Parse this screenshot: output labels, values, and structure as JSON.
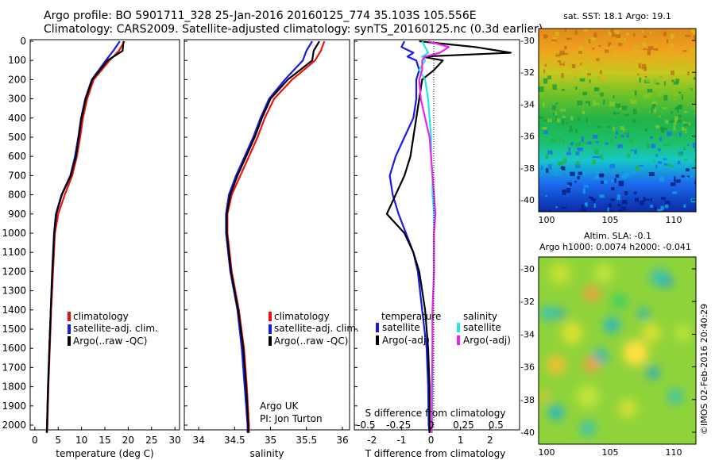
{
  "header": {
    "line1": "Argo profile: BO 5901711_328 25-Jan-2016 20160125_774 35.103S 105.556E",
    "line2": "Climatology: CARS2009. Satellite-adjusted climatology: synTS_20160125.nc (0.3d earlier)"
  },
  "credit": "©IMOS 02-Feb-2016 20:40:29",
  "depth_ticks": [
    0,
    100,
    200,
    300,
    400,
    500,
    600,
    700,
    800,
    900,
    1000,
    1100,
    1200,
    1300,
    1400,
    1500,
    1600,
    1700,
    1800,
    1900,
    2000
  ],
  "colors": {
    "climatology": "#ee1111",
    "satellite": "#1a1ae6",
    "argo": "#000000",
    "salinity_sat": "#22e8e8",
    "salinity_argo": "#ee22ee"
  },
  "temperature_panel": {
    "xlabel": "temperature (deg C)",
    "xticks": [
      "0",
      "5",
      "10",
      "15",
      "20",
      "25",
      "30"
    ],
    "legend": [
      "climatology",
      "satellite-adj. clim.",
      "Argo(..raw -QC)"
    ]
  },
  "salinity_panel": {
    "xlabel": "salinity",
    "xticks": [
      "34",
      "34.5",
      "35",
      "35.5",
      "36"
    ],
    "legend": [
      "climatology",
      "satellite-adj. clim.",
      "Argo(..raw -QC)"
    ],
    "note1": "Argo UK",
    "note2": "PI: Jon Turton"
  },
  "difference_panel": {
    "xlabel": "T difference from climatology",
    "xticks": [
      "-2",
      "-1",
      "0",
      "1",
      "2"
    ],
    "top_label": "S difference from climatology",
    "top_ticks": [
      "-0.5",
      "-0.25",
      "0",
      "0.25",
      "0.5"
    ],
    "legend_temp_title": "temperature",
    "legend_sal_title": "salinity",
    "legend_temp": [
      "satellite",
      "Argo(-adj)"
    ],
    "legend_sal": [
      "satellite",
      "Argo(-adj)"
    ]
  },
  "sst_map": {
    "title": "sat. SST: 18.1  Argo: 19.1",
    "yticks": [
      "-30",
      "-32",
      "-34",
      "-36",
      "-38",
      "-40"
    ],
    "xticks": [
      "100",
      "105",
      "110"
    ]
  },
  "sla_map": {
    "title1": "Altim. SLA: -0.1",
    "title2": "Argo h1000: 0.0074 h2000: -0.041",
    "yticks": [
      "-30",
      "-32",
      "-34",
      "-36",
      "-38",
      "-40"
    ],
    "xticks": [
      "100",
      "105",
      "110"
    ]
  },
  "chart_data": [
    {
      "type": "line",
      "xlabel": "temperature (deg C)",
      "ylabel": "",
      "xlim": [
        -1,
        31
      ],
      "ylim": [
        2050,
        0
      ],
      "y": [
        0,
        50,
        100,
        200,
        300,
        400,
        500,
        600,
        700,
        800,
        900,
        1000,
        1200,
        1400,
        1600,
        1800,
        2000,
        2040
      ],
      "series": [
        {
          "name": "climatology",
          "values": [
            19.2,
            18.0,
            16.0,
            12.6,
            11.2,
            10.3,
            9.7,
            9.0,
            8.0,
            6.4,
            5.0,
            4.3,
            3.9,
            3.5,
            3.2,
            2.9,
            2.7,
            2.6
          ]
        },
        {
          "name": "satellite-adj. clim.",
          "values": [
            18.2,
            16.8,
            15.2,
            12.2,
            10.8,
            9.9,
            9.3,
            8.6,
            7.6,
            5.7,
            4.5,
            4.1,
            3.7,
            3.4,
            3.1,
            2.8,
            2.6,
            2.55
          ]
        },
        {
          "name": "Argo(..raw -QC)",
          "values": [
            19.0,
            18.8,
            15.6,
            12.3,
            10.9,
            10.0,
            9.4,
            8.8,
            7.7,
            5.8,
            4.6,
            4.15,
            3.75,
            3.4,
            3.1,
            2.85,
            2.6,
            2.55
          ]
        }
      ]
    },
    {
      "type": "line",
      "xlabel": "salinity",
      "xlim": [
        33.8,
        36.1
      ],
      "ylim": [
        2050,
        0
      ],
      "y": [
        0,
        50,
        100,
        200,
        300,
        400,
        500,
        600,
        700,
        800,
        900,
        1000,
        1200,
        1400,
        1600,
        1800,
        2000,
        2040
      ],
      "series": [
        {
          "name": "climatology",
          "values": [
            35.75,
            35.7,
            35.62,
            35.3,
            35.05,
            34.92,
            34.82,
            34.7,
            34.58,
            34.46,
            34.4,
            34.4,
            34.46,
            34.56,
            34.63,
            34.67,
            34.7,
            34.7
          ]
        },
        {
          "name": "satellite-adj. clim.",
          "values": [
            35.58,
            35.5,
            35.45,
            35.2,
            34.98,
            34.86,
            34.76,
            34.64,
            34.52,
            34.42,
            34.38,
            34.38,
            34.44,
            34.54,
            34.6,
            34.64,
            34.68,
            34.68
          ]
        },
        {
          "name": "Argo(..raw -QC)",
          "values": [
            35.68,
            35.6,
            35.58,
            35.24,
            35.0,
            34.88,
            34.78,
            34.66,
            34.54,
            34.44,
            34.39,
            34.39,
            34.45,
            34.55,
            34.62,
            34.66,
            34.69,
            34.69
          ]
        }
      ]
    },
    {
      "type": "line",
      "xlabel": "T difference from climatology",
      "xlim": [
        -2.6,
        3.0
      ],
      "ylim": [
        2050,
        0
      ],
      "y": [
        0,
        30,
        60,
        80,
        100,
        150,
        200,
        300,
        400,
        500,
        600,
        700,
        800,
        900,
        1000,
        1100,
        1200,
        1400,
        1600,
        1800,
        2000,
        2040
      ],
      "series": [
        {
          "name": "temperature satellite",
          "values": [
            -0.9,
            -1.0,
            -0.6,
            -0.8,
            -0.5,
            -0.4,
            -0.5,
            -0.5,
            -0.6,
            -0.9,
            -1.2,
            -1.4,
            -1.3,
            -1.1,
            -0.85,
            -0.6,
            -0.45,
            -0.3,
            -0.15,
            -0.1,
            -0.08,
            -0.05
          ]
        },
        {
          "name": "temperature Argo(-adj)",
          "values": [
            -0.4,
            1.5,
            2.7,
            -0.3,
            0.4,
            0.1,
            -0.3,
            -0.4,
            -0.5,
            -0.6,
            -0.7,
            -0.9,
            -1.2,
            -1.5,
            -0.9,
            -0.6,
            -0.4,
            -0.2,
            -0.1,
            -0.05,
            -0.05,
            -0.05
          ]
        },
        {
          "name": "salinity satellite",
          "values": [
            -0.3,
            -0.2,
            -0.1,
            -0.3,
            -0.2,
            -0.4,
            -0.2,
            -0.1,
            -0.05,
            0.0,
            0.0,
            0.05,
            0.05,
            0.1,
            0.1,
            0.1,
            0.1,
            0.05,
            0.05,
            0.05,
            0.03,
            0.03
          ]
        },
        {
          "name": "salinity Argo(-adj)",
          "values": [
            -0.1,
            0.6,
            0.3,
            -0.2,
            -0.3,
            -0.3,
            -0.4,
            -0.35,
            -0.2,
            -0.05,
            0.0,
            0.05,
            0.1,
            0.15,
            0.1,
            0.1,
            0.1,
            0.05,
            0.05,
            0.03,
            0.02,
            0.02
          ]
        }
      ]
    }
  ]
}
